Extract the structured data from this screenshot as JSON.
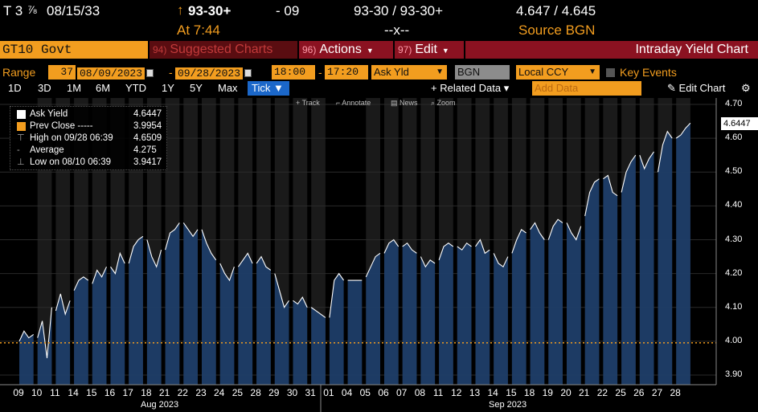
{
  "quote": {
    "ticker": "T 3",
    "fraction": "⅞",
    "maturity": "08/15/33",
    "last_arrow": "↑",
    "last_price": "93-30+",
    "change": "- 09",
    "bid_ask": "93-30 / 93-30+",
    "yields": "4.647 / 4.645",
    "time": "At 7:44",
    "size": "--x--",
    "source": "Source BGN"
  },
  "func_bar": {
    "security": "GT10 Govt",
    "suggested_num": "94)",
    "suggested": "Suggested Charts",
    "actions_num": "96)",
    "actions": "Actions",
    "edit_num": "97)",
    "edit": "Edit",
    "title": "Intraday Yield Chart"
  },
  "range_row": {
    "range_label": "Range",
    "period": "37",
    "start_date": "08/09/2023",
    "end_date": "09/28/2023",
    "start_time": "18:00",
    "end_time": "17:20",
    "field": "Ask Yld",
    "source": "BGN",
    "currency": "Local CCY",
    "key_events": "Key Events"
  },
  "tabs_row": {
    "tabs": [
      "1D",
      "3D",
      "1M",
      "6M",
      "YTD",
      "1Y",
      "5Y",
      "Max"
    ],
    "active_tab": "Tick ▼",
    "related": "+ Related Data ▾",
    "add_data_placeholder": "Add Data",
    "edit_chart": "Edit Chart",
    "gear": "⚙"
  },
  "chart_toolbar": [
    "Track",
    "Annotate",
    "News",
    "Zoom"
  ],
  "legend": [
    {
      "label": "Ask Yield",
      "value": "4.6447"
    },
    {
      "label": "Prev Close -----",
      "value": "3.9954"
    },
    {
      "label": "High on 09/28 06:39",
      "value": "4.6509"
    },
    {
      "label": "Average",
      "value": "4.275"
    },
    {
      "label": "Low on 08/10 06:39",
      "value": "3.9417"
    }
  ],
  "last_value_tag": "4.6447",
  "colors": {
    "accent": "#f29d1f",
    "bar_fill": "#1d3d68",
    "line": "#ffffff",
    "prev_close": "#f29d1f",
    "tab_active": "#1b67c9",
    "shade": "#1a1a1a"
  },
  "chart_data": {
    "type": "area",
    "title": "Intraday Yield Chart",
    "ylim": [
      3.88,
      4.71
    ],
    "y_ticks": [
      "4.70",
      "4.60",
      "4.50",
      "4.40",
      "4.30",
      "4.20",
      "4.10",
      "4.00",
      "3.90"
    ],
    "prev_close": 3.9954,
    "x_days": [
      "09",
      "10",
      "11",
      "14",
      "15",
      "16",
      "17",
      "18",
      "21",
      "22",
      "23",
      "24",
      "25",
      "28",
      "29",
      "30",
      "31",
      "01",
      "04",
      "05",
      "06",
      "07",
      "08",
      "11",
      "12",
      "13",
      "14",
      "15",
      "18",
      "19",
      "20",
      "21",
      "22",
      "25",
      "26",
      "27",
      "28"
    ],
    "months": [
      "Aug 2023",
      "Sep 2023"
    ],
    "day_shaded": [
      false,
      true,
      true,
      true,
      true,
      true,
      true,
      true,
      true,
      true,
      true,
      true,
      true,
      true,
      true,
      true,
      true,
      false,
      false,
      true,
      true,
      true,
      true,
      true,
      true,
      true,
      true,
      true,
      true,
      true,
      true,
      true,
      true,
      true,
      true,
      true,
      true
    ],
    "series": [
      {
        "name": "Ask Yield",
        "days": [
          [
            4.0,
            4.03,
            4.01,
            4.02
          ],
          [
            4.01,
            4.06,
            3.95,
            4.1
          ],
          [
            4.09,
            4.14,
            4.08,
            4.12
          ],
          [
            4.15,
            4.18,
            4.19,
            4.18
          ],
          [
            4.17,
            4.21,
            4.19,
            4.22
          ],
          [
            4.22,
            4.2,
            4.26,
            4.23
          ],
          [
            4.23,
            4.28,
            4.3,
            4.31
          ],
          [
            4.3,
            4.25,
            4.22,
            4.27
          ],
          [
            4.27,
            4.32,
            4.33,
            4.35
          ],
          [
            4.35,
            4.33,
            4.31,
            4.33
          ],
          [
            4.33,
            4.29,
            4.26,
            4.24
          ],
          [
            4.23,
            4.2,
            4.18,
            4.22
          ],
          [
            4.22,
            4.24,
            4.26,
            4.23
          ],
          [
            4.23,
            4.25,
            4.22,
            4.21
          ],
          [
            4.2,
            4.15,
            4.1,
            4.12
          ],
          [
            4.12,
            4.11,
            4.13,
            4.1
          ],
          [
            4.1,
            4.09,
            4.08,
            4.07
          ],
          [
            4.07,
            4.18,
            4.2,
            4.18
          ],
          [
            4.18,
            4.18,
            4.18,
            4.18
          ],
          [
            4.19,
            4.22,
            4.25,
            4.26
          ],
          [
            4.26,
            4.29,
            4.3,
            4.28
          ],
          [
            4.28,
            4.29,
            4.27,
            4.26
          ],
          [
            4.25,
            4.22,
            4.24,
            4.23
          ],
          [
            4.24,
            4.28,
            4.29,
            4.28
          ],
          [
            4.28,
            4.27,
            4.29,
            4.28
          ],
          [
            4.28,
            4.3,
            4.26,
            4.27
          ],
          [
            4.26,
            4.23,
            4.22,
            4.25
          ],
          [
            4.26,
            4.3,
            4.33,
            4.32
          ],
          [
            4.33,
            4.35,
            4.32,
            4.3
          ],
          [
            4.3,
            4.34,
            4.36,
            4.35
          ],
          [
            4.35,
            4.32,
            4.3,
            4.34
          ],
          [
            4.37,
            4.44,
            4.47,
            4.48
          ],
          [
            4.48,
            4.49,
            4.44,
            4.43
          ],
          [
            4.44,
            4.5,
            4.53,
            4.55
          ],
          [
            4.55,
            4.51,
            4.54,
            4.56
          ],
          [
            4.5,
            4.58,
            4.62,
            4.6
          ],
          [
            4.6,
            4.61,
            4.63,
            4.6447
          ]
        ]
      }
    ]
  }
}
